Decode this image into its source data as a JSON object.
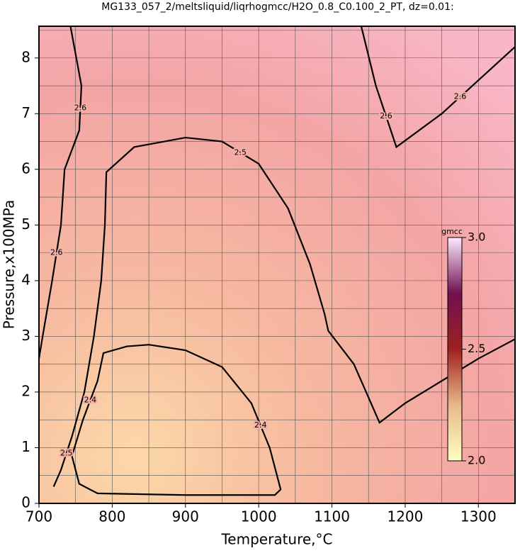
{
  "chart_data": {
    "type": "contour",
    "title": "MG133_057_2/meltsliquid/liqrhogmcc/H2O_0.8_C0.100_2_PT, dz=0.01:",
    "xlabel": "Temperature,°C",
    "ylabel": "Pressure,x100MPa",
    "xlim": [
      700,
      1350
    ],
    "ylim": [
      0,
      8.57
    ],
    "xticks": [
      700,
      800,
      900,
      1000,
      1100,
      1200,
      1300
    ],
    "yticks": [
      0,
      1,
      2,
      3,
      4,
      5,
      6,
      7,
      8
    ],
    "xgrid": [
      750,
      800,
      850,
      900,
      950,
      1000,
      1050,
      1100,
      1150,
      1200,
      1250,
      1300
    ],
    "ygrid": [
      0.5,
      1,
      1.5,
      2,
      2.5,
      3,
      3.5,
      4,
      4.5,
      5,
      5.5,
      6,
      6.5,
      7,
      7.5,
      8,
      8.5
    ],
    "contours": [
      {
        "level": 2.4,
        "x": [
          745,
          760,
          780,
          788,
          820,
          850,
          900,
          950,
          990,
          1015,
          1030,
          1022,
          900,
          780,
          755,
          745
        ],
        "y": [
          0.85,
          1.5,
          2.2,
          2.7,
          2.82,
          2.85,
          2.75,
          2.45,
          1.8,
          1.0,
          0.25,
          0.15,
          0.15,
          0.18,
          0.35,
          0.85
        ]
      },
      {
        "level": 2.5,
        "x": [
          720,
          730,
          745,
          762,
          775,
          785,
          790,
          792,
          830,
          900,
          950,
          1000,
          1040,
          1070,
          1090,
          1095,
          1130,
          1165,
          1200,
          1300,
          1350
        ],
        "y": [
          0.3,
          0.6,
          1.2,
          2.0,
          3.0,
          4.0,
          5.0,
          5.95,
          6.4,
          6.57,
          6.5,
          6.1,
          5.3,
          4.3,
          3.4,
          3.1,
          2.5,
          1.45,
          1.8,
          2.6,
          2.95
        ]
      },
      {
        "level": 2.6,
        "x": [
          743,
          758,
          755,
          735,
          730,
          718,
          705,
          700
        ],
        "y": [
          8.57,
          7.5,
          6.7,
          6.0,
          5.0,
          4.0,
          3.0,
          2.6
        ]
      },
      {
        "level": 2.6,
        "x": [
          1140,
          1160,
          1188,
          1250,
          1300,
          1350
        ],
        "y": [
          8.57,
          7.5,
          6.4,
          7.0,
          7.6,
          8.2
        ]
      }
    ],
    "colorbar": {
      "label": "gmcc",
      "lim": [
        2.0,
        3.0
      ],
      "ticks": [
        {
          "value": 2.0,
          "label": "2.0"
        },
        {
          "value": 2.5,
          "label": "2.5"
        },
        {
          "value": 3.0,
          "label": "3.0"
        }
      ]
    }
  }
}
